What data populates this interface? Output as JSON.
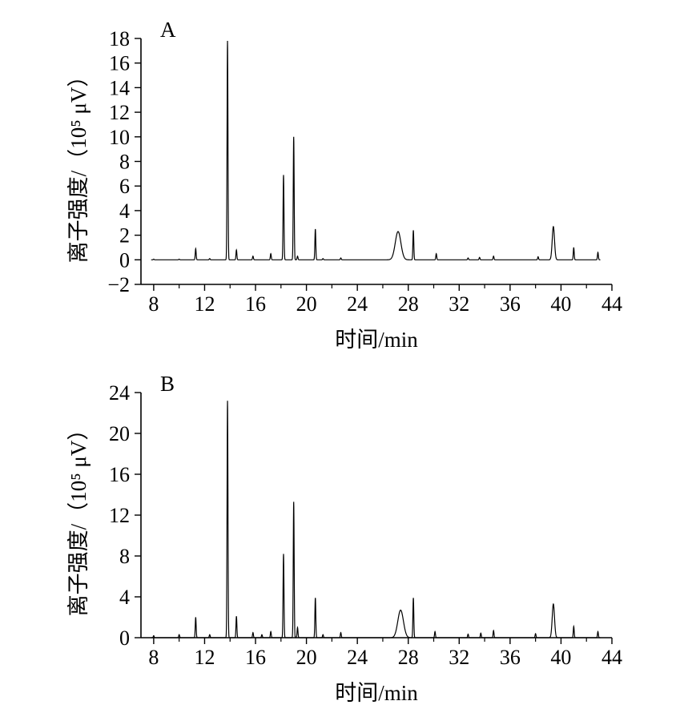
{
  "chart_data": [
    {
      "type": "line",
      "panel_label": "A",
      "xlabel": "时间/min",
      "ylabel": "离子强度/（10⁵ μV）",
      "xlim": [
        7,
        44
      ],
      "ylim": [
        -2,
        18
      ],
      "xticks": [
        "8",
        "12",
        "16",
        "20",
        "24",
        "28",
        "32",
        "36",
        "40",
        "44"
      ],
      "yticks": [
        "−2",
        "0",
        "2",
        "4",
        "6",
        "8",
        "10",
        "12",
        "14",
        "16",
        "18"
      ],
      "series": [
        {
          "x": [
            8,
            10,
            11.3,
            12.4,
            13.8,
            14.5,
            15.8,
            17.2,
            18.2,
            19.0,
            19.3,
            20.7,
            21.3,
            22.7,
            27.2,
            28.4,
            30.2,
            32.7,
            33.6,
            34.7,
            38.2,
            39.4,
            41.0,
            42.9
          ],
          "y": [
            0.05,
            0.05,
            0.9,
            0.1,
            17.8,
            0.8,
            0.3,
            0.5,
            6.9,
            10.0,
            0.3,
            2.5,
            0.1,
            0.15,
            2.3,
            2.4,
            0.5,
            0.15,
            0.2,
            0.3,
            0.25,
            2.7,
            1.0,
            0.6
          ]
        }
      ]
    },
    {
      "type": "line",
      "panel_label": "B",
      "xlabel": "时间/min",
      "ylabel": "离子强度/（10⁵ μV）",
      "xlim": [
        7,
        44
      ],
      "ylim": [
        0,
        24
      ],
      "xticks": [
        "8",
        "12",
        "16",
        "20",
        "24",
        "28",
        "32",
        "36",
        "40",
        "44"
      ],
      "yticks": [
        "0",
        "4",
        "8",
        "12",
        "16",
        "20",
        "24"
      ],
      "series": [
        {
          "x": [
            8,
            10,
            11.3,
            12.4,
            13.8,
            14.5,
            15.8,
            16.5,
            17.2,
            18.2,
            19.0,
            19.3,
            20.7,
            21.3,
            22.7,
            27.4,
            28.4,
            30.1,
            32.7,
            33.7,
            34.7,
            38.0,
            39.4,
            41.0,
            42.9
          ],
          "y": [
            0.2,
            0.3,
            2.0,
            0.3,
            23.2,
            2.1,
            0.5,
            0.3,
            0.6,
            8.2,
            13.3,
            1.0,
            3.9,
            0.3,
            0.5,
            2.7,
            3.9,
            0.6,
            0.35,
            0.45,
            0.7,
            0.4,
            3.3,
            1.1,
            0.6
          ]
        }
      ]
    }
  ]
}
